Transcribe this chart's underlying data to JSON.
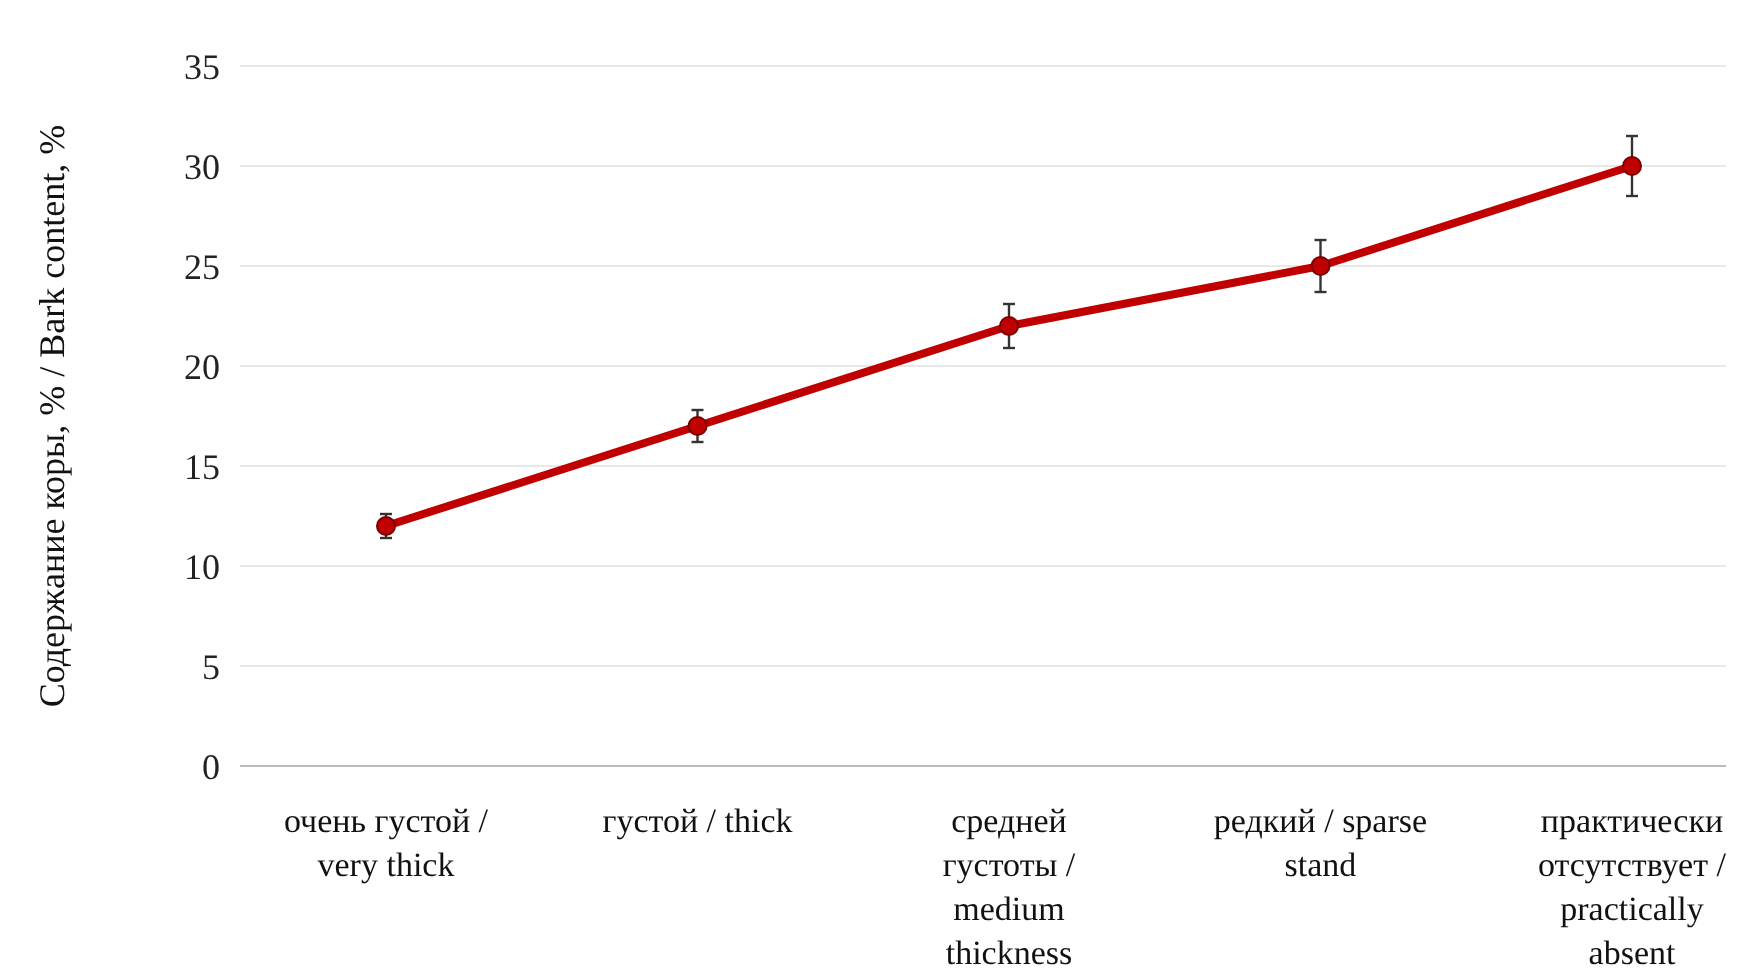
{
  "chart_data": {
    "type": "line",
    "ylabel": "Содержание коры, % / Bark content, %",
    "categories": [
      "очень густой / very thick",
      "густой / thick",
      "средней густоты / medium thickness",
      "редкий / sparse stand",
      "практически отсутствует / practically absent"
    ],
    "series": [
      {
        "color": "#c00000",
        "values": [
          12,
          17,
          22,
          25,
          30
        ],
        "errors": [
          0.6,
          0.8,
          1.1,
          1.3,
          1.5
        ]
      }
    ],
    "ylim": [
      0,
      35
    ],
    "yticks": [
      0,
      5,
      10,
      15,
      20,
      25,
      30,
      35
    ],
    "grid": "y",
    "marker": "circle",
    "line_style": "solid"
  }
}
